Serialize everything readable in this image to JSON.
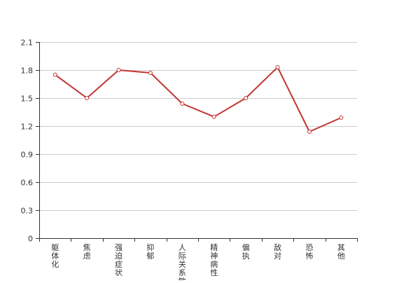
{
  "chart_data": {
    "type": "line",
    "title": "",
    "xlabel": "",
    "ylabel": "",
    "categories": [
      "躯体化",
      "焦虑",
      "强迫症状",
      "抑郁",
      "人际关系敏感",
      "精神病性",
      "偏执",
      "敌对",
      "恐怖",
      "其他"
    ],
    "series": [
      {
        "values": [
          1.75,
          1.5,
          1.8,
          1.77,
          1.44,
          1.3,
          1.5,
          1.83,
          1.14,
          1.29
        ]
      }
    ],
    "ylim": [
      0,
      2.1
    ],
    "yticks": [
      "0",
      "0.3",
      "0.6",
      "0.9",
      "1.2",
      "1.5",
      "1.8",
      "2.1"
    ],
    "grid": true,
    "legend": "none",
    "colors": {
      "line": "#c23531",
      "grid": "#cccccc",
      "axis": "#333333",
      "marker_fill": "#ffffff"
    }
  }
}
